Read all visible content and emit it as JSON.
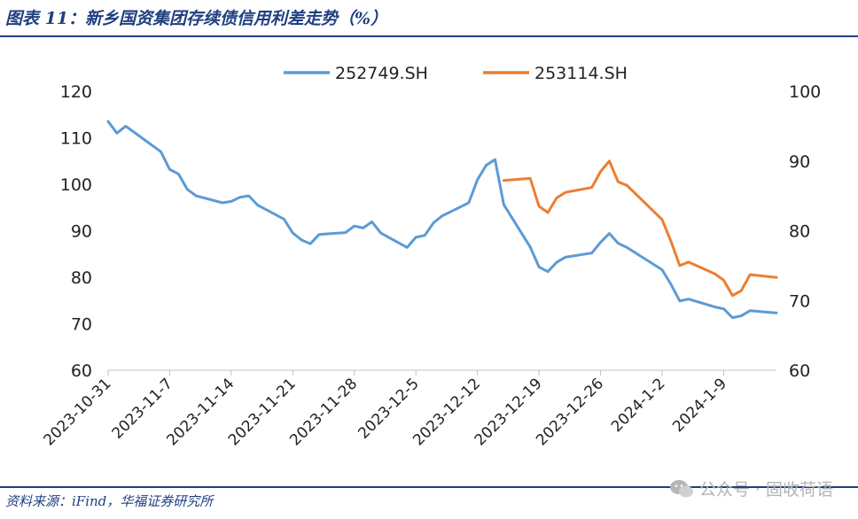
{
  "title": "图表 11：新乡国资集团存续债信用利差走势（%）",
  "source": "资料来源：iFind，华福证券研究所",
  "watermark": {
    "icon": "wechat-icon",
    "text": "公众号 · 固收荷语"
  },
  "colors": {
    "series1": "#5b9bd5",
    "series2": "#ed7d31",
    "title": "#1f3f80"
  },
  "chart_data": {
    "type": "line",
    "x_tick_labels": [
      "2023-10-31",
      "2023-11-7",
      "2023-11-14",
      "2023-11-21",
      "2023-11-28",
      "2023-12-5",
      "2023-12-12",
      "2023-12-19",
      "2023-12-26",
      "2024-1-2",
      "2024-1-9"
    ],
    "y_left": {
      "ylim": [
        60,
        120
      ],
      "ticks": [
        60,
        70,
        80,
        90,
        100,
        110,
        120
      ]
    },
    "y_right": {
      "ylim": [
        60,
        100
      ],
      "ticks": [
        60,
        70,
        80,
        90,
        100
      ]
    },
    "legend_position": "top-center",
    "grid": false,
    "series": [
      {
        "name": "252749.SH",
        "axis": "left",
        "color": "#5b9bd5",
        "points": [
          [
            "2023-10-31",
            113.5
          ],
          [
            "2023-11-01",
            111.0
          ],
          [
            "2023-11-02",
            112.5
          ],
          [
            "2023-11-06",
            107.0
          ],
          [
            "2023-11-07",
            103.2
          ],
          [
            "2023-11-08",
            102.2
          ],
          [
            "2023-11-09",
            98.9
          ],
          [
            "2023-11-10",
            97.5
          ],
          [
            "2023-11-13",
            96.0
          ],
          [
            "2023-11-14",
            96.3
          ],
          [
            "2023-11-15",
            97.2
          ],
          [
            "2023-11-16",
            97.5
          ],
          [
            "2023-11-17",
            95.5
          ],
          [
            "2023-11-20",
            92.5
          ],
          [
            "2023-11-21",
            89.5
          ],
          [
            "2023-11-22",
            88.0
          ],
          [
            "2023-11-23",
            87.2
          ],
          [
            "2023-11-24",
            89.2
          ],
          [
            "2023-11-27",
            89.6
          ],
          [
            "2023-11-28",
            91.0
          ],
          [
            "2023-11-29",
            90.6
          ],
          [
            "2023-11-30",
            91.9
          ],
          [
            "2023-12-01",
            89.5
          ],
          [
            "2023-12-04",
            86.4
          ],
          [
            "2023-12-05",
            88.6
          ],
          [
            "2023-12-06",
            89.0
          ],
          [
            "2023-12-07",
            91.7
          ],
          [
            "2023-12-08",
            93.2
          ],
          [
            "2023-12-11",
            96.0
          ],
          [
            "2023-12-12",
            101.0
          ],
          [
            "2023-12-13",
            104.1
          ],
          [
            "2023-12-14",
            105.3
          ],
          [
            "2023-12-15",
            95.6
          ],
          [
            "2023-12-18",
            86.5
          ],
          [
            "2023-12-19",
            82.2
          ],
          [
            "2023-12-20",
            81.2
          ],
          [
            "2023-12-21",
            83.2
          ],
          [
            "2023-12-22",
            84.3
          ],
          [
            "2023-12-25",
            85.2
          ],
          [
            "2023-12-26",
            87.5
          ],
          [
            "2023-12-27",
            89.4
          ],
          [
            "2023-12-28",
            87.3
          ],
          [
            "2023-12-29",
            86.4
          ],
          [
            "2024-01-02",
            81.6
          ],
          [
            "2024-01-03",
            78.5
          ],
          [
            "2024-01-04",
            74.9
          ],
          [
            "2024-01-05",
            75.3
          ],
          [
            "2024-01-08",
            73.6
          ],
          [
            "2024-01-09",
            73.2
          ],
          [
            "2024-01-10",
            71.3
          ],
          [
            "2024-01-11",
            71.7
          ],
          [
            "2024-01-12",
            72.8
          ],
          [
            "2024-01-15",
            72.3
          ]
        ]
      },
      {
        "name": "253114.SH",
        "axis": "right",
        "color": "#ed7d31",
        "points": [
          [
            "2023-12-15",
            87.2
          ],
          [
            "2023-12-18",
            87.5
          ],
          [
            "2023-12-19",
            83.5
          ],
          [
            "2023-12-20",
            82.6
          ],
          [
            "2023-12-21",
            84.7
          ],
          [
            "2023-12-22",
            85.5
          ],
          [
            "2023-12-25",
            86.2
          ],
          [
            "2023-12-26",
            88.5
          ],
          [
            "2023-12-27",
            90.0
          ],
          [
            "2023-12-28",
            87.0
          ],
          [
            "2023-12-29",
            86.5
          ],
          [
            "2024-01-02",
            81.6
          ],
          [
            "2024-01-03",
            78.5
          ],
          [
            "2024-01-04",
            75.0
          ],
          [
            "2024-01-05",
            75.5
          ],
          [
            "2024-01-08",
            73.8
          ],
          [
            "2024-01-09",
            72.9
          ],
          [
            "2024-01-10",
            70.7
          ],
          [
            "2024-01-11",
            71.4
          ],
          [
            "2024-01-12",
            73.7
          ],
          [
            "2024-01-15",
            73.3
          ]
        ]
      }
    ]
  }
}
